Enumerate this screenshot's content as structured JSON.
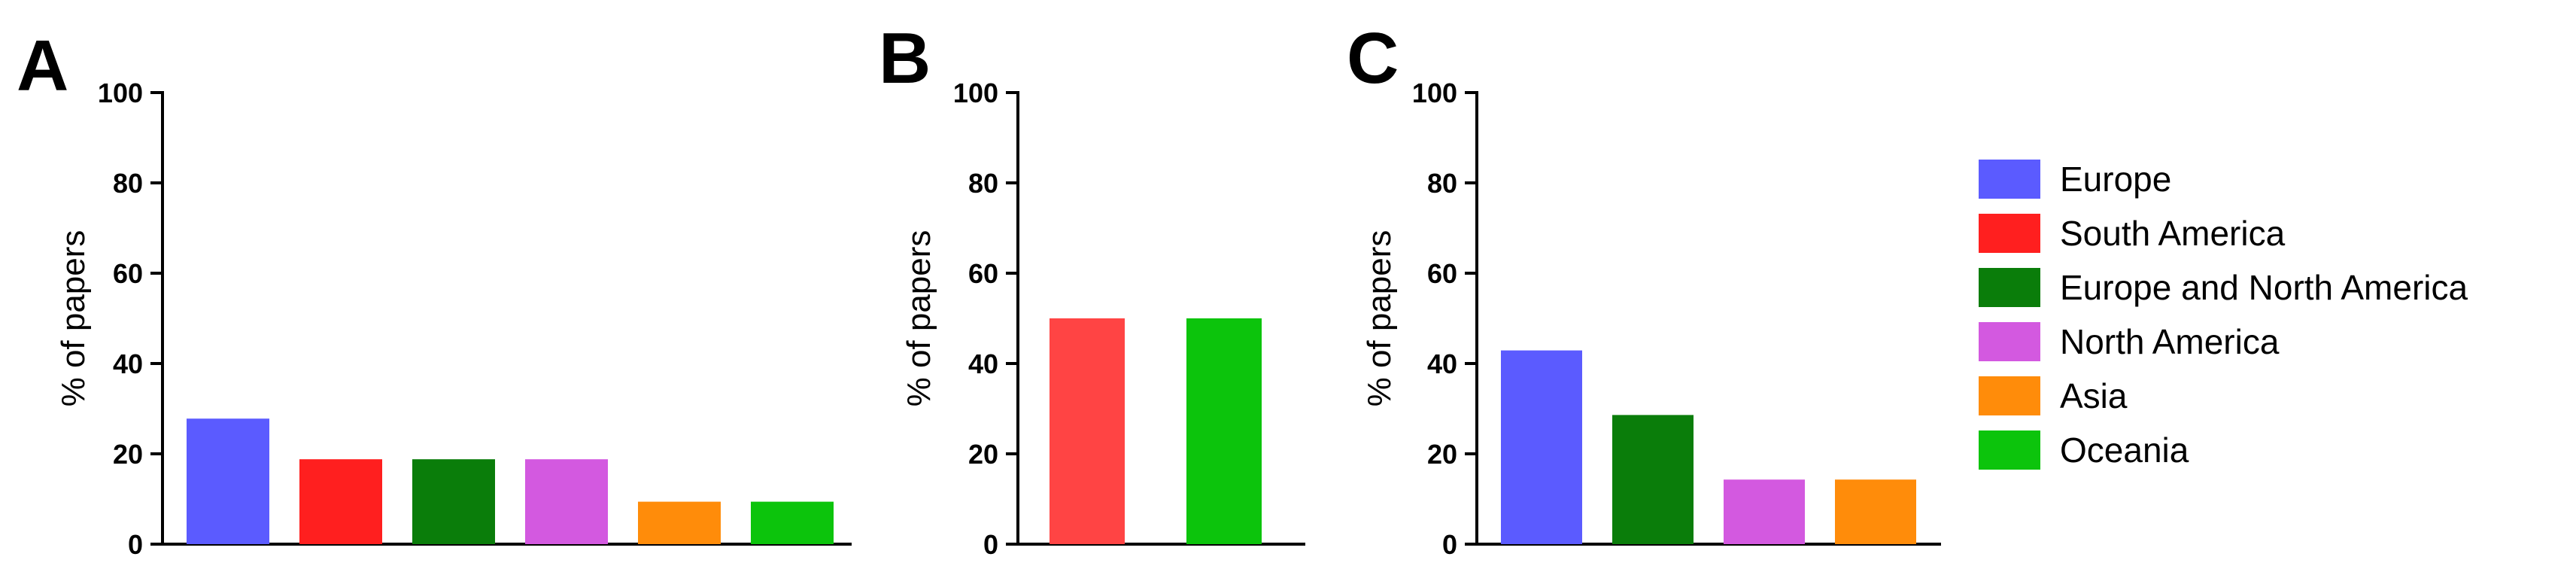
{
  "chart_data": [
    {
      "type": "bar",
      "panel": "A",
      "ylabel": "% of papers",
      "ylim": [
        0,
        100
      ],
      "yticks": [
        "0",
        "20",
        "40",
        "60",
        "80",
        "100"
      ],
      "categories": [
        "Europe",
        "South America",
        "Europe and North America",
        "North America",
        "Asia",
        "Oceania"
      ],
      "values": [
        27.8,
        18.8,
        18.8,
        18.8,
        9.4,
        9.4
      ],
      "colors": [
        "#5b5bff",
        "#ff1f1f",
        "#0a7d0a",
        "#d359e0",
        "#ff8c0a",
        "#0cc40c"
      ]
    },
    {
      "type": "bar",
      "panel": "B",
      "ylabel": "% of papers",
      "ylim": [
        0,
        100
      ],
      "yticks": [
        "0",
        "20",
        "40",
        "60",
        "80",
        "100"
      ],
      "categories": [
        "South America",
        "Oceania"
      ],
      "values": [
        50,
        50
      ],
      "colors": [
        "#ff4444",
        "#0cc40c"
      ]
    },
    {
      "type": "bar",
      "panel": "C",
      "ylabel": "% of papers",
      "ylim": [
        0,
        100
      ],
      "yticks": [
        "0",
        "20",
        "40",
        "60",
        "80",
        "100"
      ],
      "categories": [
        "Europe",
        "Europe and North America",
        "North America",
        "Asia"
      ],
      "values": [
        42.9,
        28.6,
        14.3,
        14.3
      ],
      "colors": [
        "#5b5bff",
        "#0a7d0a",
        "#d359e0",
        "#ff8c0a"
      ]
    }
  ],
  "legend": {
    "position": "right",
    "items": [
      {
        "label": "Europe",
        "color": "#5b5bff"
      },
      {
        "label": "South America",
        "color": "#ff1f1f"
      },
      {
        "label": "Europe and North America",
        "color": "#0a7d0a"
      },
      {
        "label": "North America",
        "color": "#d359e0"
      },
      {
        "label": "Asia",
        "color": "#ff8c0a"
      },
      {
        "label": "Oceania",
        "color": "#0cc40c"
      }
    ]
  }
}
